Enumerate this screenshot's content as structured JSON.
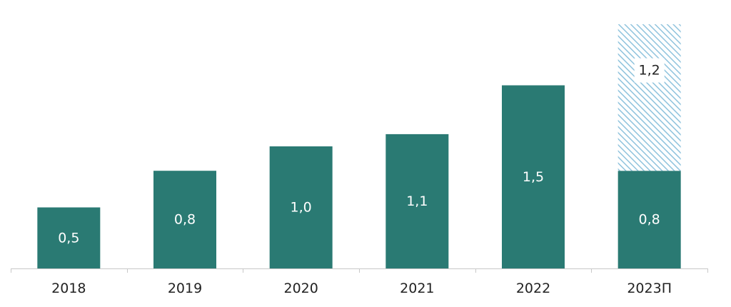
{
  "chart_data": {
    "type": "bar",
    "stacked": true,
    "categories": [
      "2018",
      "2019",
      "2020",
      "2021",
      "2022",
      "2023П"
    ],
    "series": [
      {
        "values": [
          0.5,
          0.8,
          1.0,
          1.1,
          1.5,
          0.8
        ],
        "labels": [
          "0,5",
          "0,8",
          "1,0",
          "1,1",
          "1,5",
          "0,8"
        ]
      },
      {
        "values": [
          null,
          null,
          null,
          null,
          null,
          1.2
        ],
        "labels": [
          null,
          null,
          null,
          null,
          null,
          "1,2"
        ]
      }
    ],
    "ylim": [
      0,
      2.0
    ],
    "grid": false,
    "title": "",
    "xlabel": "",
    "ylabel": ""
  },
  "colors": {
    "bar": "#2a7a73",
    "hatch": "#8fc3dd",
    "axis": "#c8c8c8",
    "label_on_bar": "#ffffff",
    "label_box_text": "#222222",
    "label_box_bg": "#ffffff"
  }
}
